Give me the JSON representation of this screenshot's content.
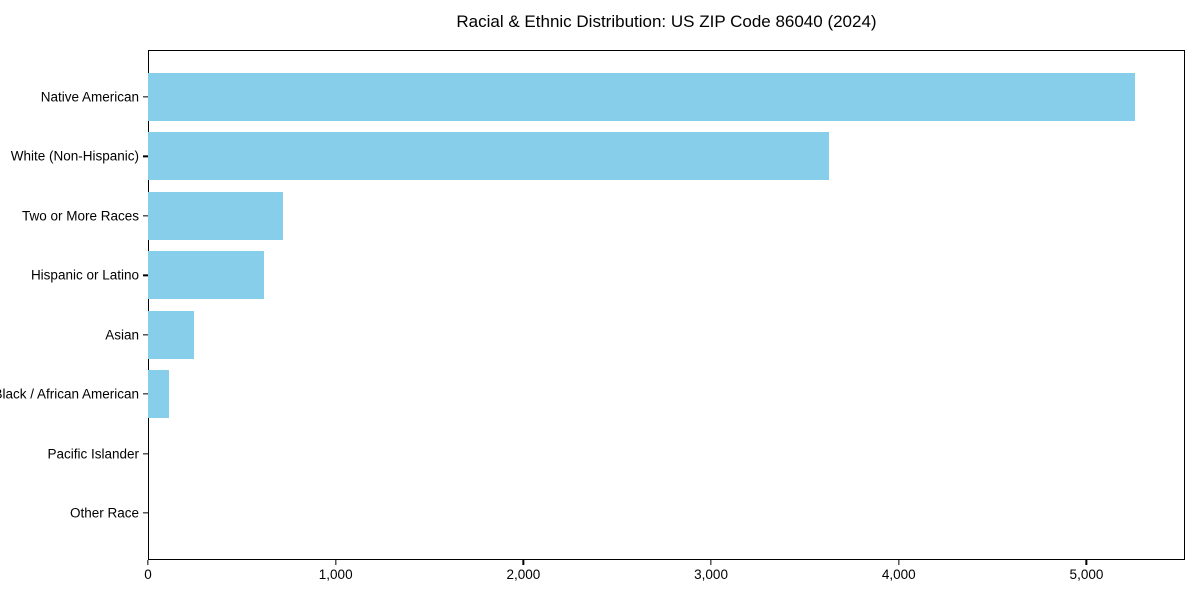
{
  "chart_data": {
    "type": "bar",
    "orientation": "horizontal",
    "title": "Racial & Ethnic Distribution: US ZIP Code 86040 (2024)",
    "categories": [
      "Native American",
      "White (Non-Hispanic)",
      "Two or More Races",
      "Hispanic or Latino",
      "Asian",
      "Black / African American",
      "Pacific Islander",
      "Other Race"
    ],
    "values": [
      5260,
      3630,
      720,
      620,
      245,
      110,
      0,
      0
    ],
    "xlabel": "",
    "ylabel": "",
    "xlim": [
      0,
      5525
    ],
    "x_ticks": [
      0,
      1000,
      2000,
      3000,
      4000,
      5000
    ],
    "x_tick_labels": [
      "0",
      "1,000",
      "2,000",
      "3,000",
      "4,000",
      "5,000"
    ],
    "bar_color": "#87CEEB",
    "background_color": "#FFFFFF",
    "text_color": "#000000",
    "grid": false,
    "legend": null
  }
}
